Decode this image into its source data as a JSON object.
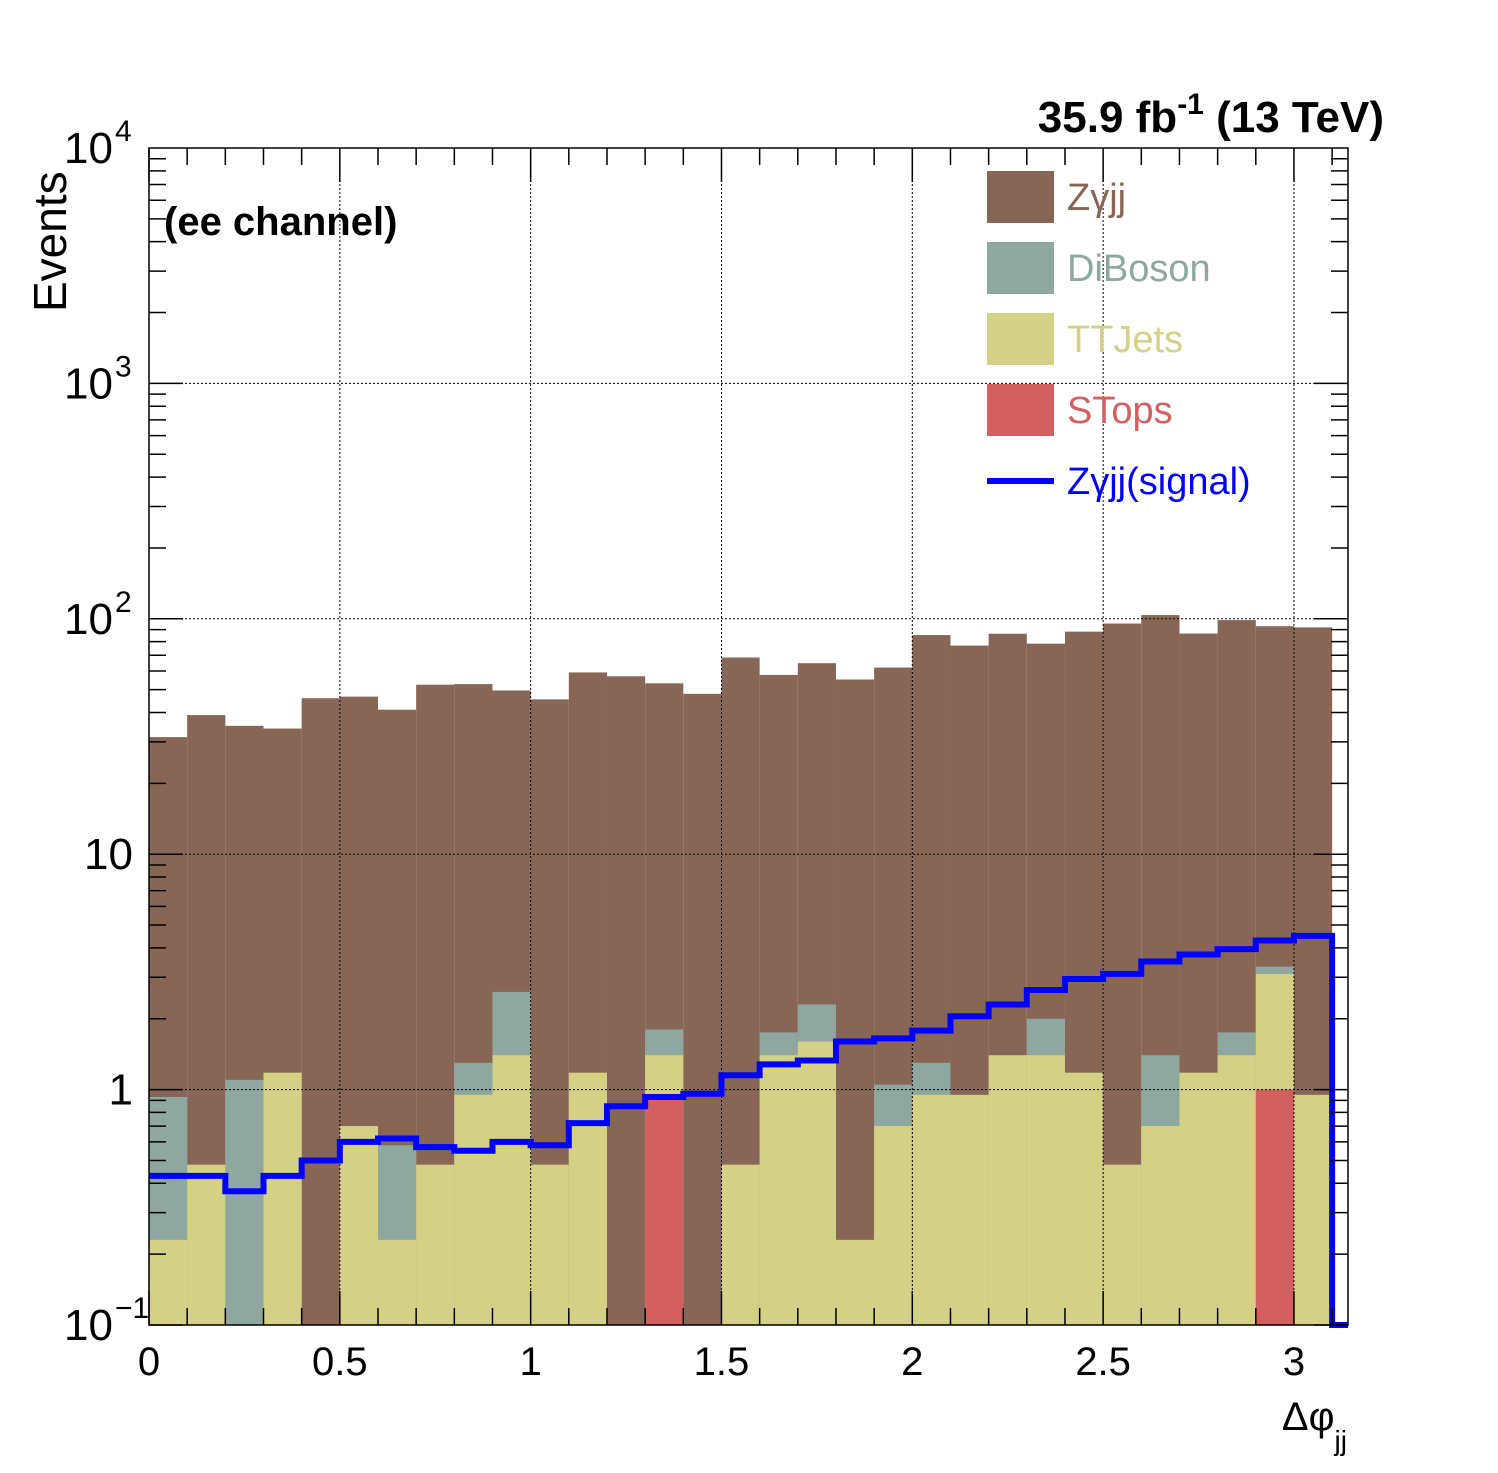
{
  "chart_data": {
    "type": "bar",
    "stacked": true,
    "yscale": "log",
    "ylim": [
      0.1,
      10000
    ],
    "xlim": [
      0,
      3.1416
    ],
    "grid": true,
    "xlabel": "Δφ",
    "xlabel_sub": "jj",
    "ylabel": "Events",
    "lumi_label": "35.9 fb",
    "lumi_sup": "-1",
    "lumi_energy": " (13 TeV)",
    "channel_label": "(ee channel)",
    "legend_position": "top-right",
    "x_ticks": [
      "0",
      "0.5",
      "1",
      "1.5",
      "2",
      "2.5",
      "3"
    ],
    "x_tick_values": [
      0,
      0.5,
      1,
      1.5,
      2,
      2.5,
      3
    ],
    "y_ticks": [
      {
        "value": 0.1,
        "base": "10",
        "sup": "−1"
      },
      {
        "value": 1,
        "base": "1",
        "sup": ""
      },
      {
        "value": 10,
        "base": "10",
        "sup": ""
      },
      {
        "value": 100,
        "base": "10",
        "sup": "2"
      },
      {
        "value": 1000,
        "base": "10",
        "sup": "3"
      },
      {
        "value": 10000,
        "base": "10",
        "sup": "4"
      }
    ],
    "bin_width": 0.1,
    "bin_edges": [
      0,
      0.1,
      0.2,
      0.3,
      0.4,
      0.5,
      0.6,
      0.7,
      0.8,
      0.9,
      1.0,
      1.1,
      1.2,
      1.3,
      1.4,
      1.5,
      1.6,
      1.7,
      1.8,
      1.9,
      2.0,
      2.1,
      2.2,
      2.3,
      2.4,
      2.5,
      2.6,
      2.7,
      2.8,
      2.9,
      3.0,
      3.1
    ],
    "series": [
      {
        "name": "STops",
        "color": "#d26060",
        "values": [
          0,
          0,
          0,
          0,
          0,
          0,
          0,
          0,
          0,
          0,
          0,
          0,
          0,
          0.95,
          0,
          0,
          0,
          0,
          0,
          0,
          0,
          0,
          0,
          0,
          0,
          0,
          0,
          0,
          0,
          1.0,
          0,
          0
        ]
      },
      {
        "name": "TTJets",
        "color": "#d4d186",
        "values": [
          0.23,
          0.48,
          0,
          1.18,
          0,
          0.7,
          0.23,
          0.48,
          0.95,
          1.4,
          0.48,
          1.18,
          0,
          0.45,
          0,
          0.48,
          1.4,
          1.6,
          0.23,
          0.7,
          0.95,
          0.95,
          1.4,
          1.4,
          1.18,
          0.48,
          0.7,
          1.18,
          1.4,
          2.1,
          0.95,
          0
        ]
      },
      {
        "name": "DiBoson",
        "color": "#8ea79f",
        "values": [
          0.7,
          0,
          1.1,
          0,
          0,
          0,
          0.35,
          0,
          0.35,
          1.2,
          0,
          0,
          0,
          0.4,
          0,
          0,
          0.35,
          0.7,
          0,
          0.35,
          0.35,
          0,
          0,
          0.6,
          0,
          0,
          0.7,
          0,
          0.35,
          0.23,
          0,
          0
        ]
      },
      {
        "name": "Zγjj",
        "color": "#876656",
        "values": [
          30.5,
          38.5,
          34,
          33,
          46,
          46,
          40.5,
          52,
          51.5,
          47,
          45,
          58,
          57,
          51.4,
          48,
          68,
          56,
          62.5,
          55,
          61,
          84,
          76,
          85,
          76.4,
          87,
          95,
          102.3,
          85.4,
          97,
          89.7,
          91,
          0
        ]
      }
    ],
    "signal": {
      "name": "Zγjj(signal)",
      "color": "#0000ff",
      "values": [
        0.43,
        0.43,
        0.37,
        0.43,
        0.5,
        0.6,
        0.62,
        0.57,
        0.55,
        0.6,
        0.58,
        0.72,
        0.85,
        0.93,
        0.96,
        1.15,
        1.28,
        1.33,
        1.6,
        1.65,
        1.78,
        2.05,
        2.3,
        2.65,
        2.95,
        3.1,
        3.5,
        3.75,
        3.95,
        4.3,
        4.5,
        0
      ]
    }
  }
}
